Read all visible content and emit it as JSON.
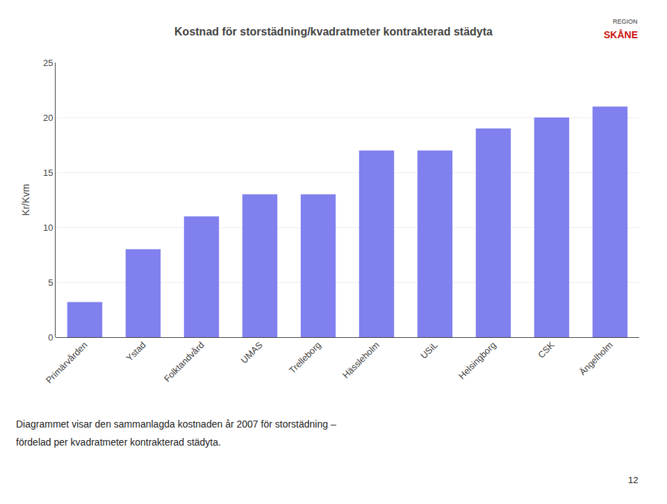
{
  "chart_data": {
    "type": "bar",
    "title": "Kostnad för storstädning/kvadratmeter kontrakterad städyta",
    "categories": [
      "Primärvården",
      "Ystad",
      "Folktandvård",
      "UMAS",
      "Trelleborg",
      "Hässleholm",
      "USiL",
      "Helsingborg",
      "CSK",
      "Ängelholm"
    ],
    "values": [
      3.2,
      8.0,
      11.0,
      13.0,
      13.0,
      17.0,
      17.0,
      19.0,
      20.0,
      21.0
    ],
    "color": "#8080EE",
    "ylabel": "Kr/Kvm",
    "ylim": [
      0,
      25
    ],
    "yticks": [
      0,
      5,
      10,
      15,
      20,
      25
    ],
    "grid": true,
    "annotations": [
      "Diagrammet visar den sammanlagda kostnaden år 2007 för storstädning –",
      "fördelad per kvadratmeter kontrakterad städyta.",
      "12",
      "REGION",
      "SKÅNE"
    ]
  }
}
